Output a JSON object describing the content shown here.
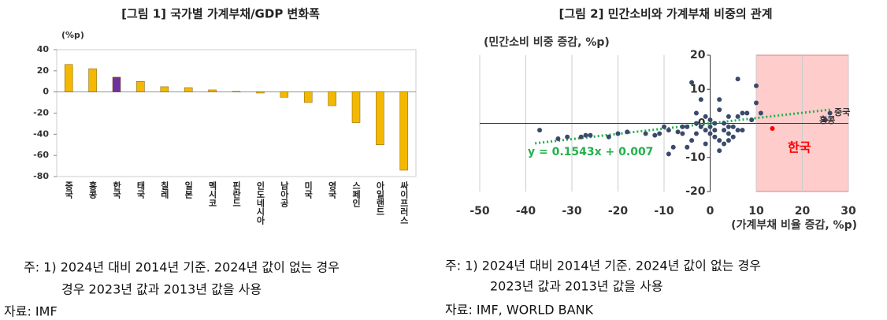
{
  "chart_data": [
    {
      "type": "bar",
      "title": "[그림 1] 국가별 가계부채/GDP 변화폭",
      "unit": "(%p)",
      "categories": [
        "중국",
        "홍콩",
        "한국",
        "태국",
        "칠레",
        "일본",
        "멕시코",
        "핀란드",
        "인도네시아",
        "남아공",
        "미국",
        "영국",
        "스페인",
        "아일랜드",
        "싸이프러스"
      ],
      "values": [
        26,
        22,
        14,
        10,
        5,
        4,
        2,
        0.5,
        -1,
        -5,
        -10,
        -13,
        -29,
        -50,
        -74
      ],
      "colors": [
        "#f5b800",
        "#f5b800",
        "#7030a0",
        "#f5b800",
        "#f5b800",
        "#f5b800",
        "#f5b800",
        "#f5b800",
        "#f5b800",
        "#f5b800",
        "#f5b800",
        "#f5b800",
        "#f5b800",
        "#f5b800",
        "#f5b800"
      ],
      "ylim": [
        -80,
        40
      ],
      "yticks": [
        -80,
        -60,
        -40,
        -20,
        0,
        20,
        40
      ],
      "note_lines": [
        "주: 1) 2024년 대비 2014년 기준. 2024년 값이 없는 경우",
        "경우 2023년 값과 2013년 값을 사용"
      ],
      "source": "자료: IMF"
    },
    {
      "type": "scatter",
      "title": "[그림 2] 민간소비와 가계부채 비중의 관계",
      "y_label": "(민간소비 비중 증감, %p)",
      "x_label": "(가계부채 비율 증감, %p)",
      "xlim": [
        -50,
        30
      ],
      "xticks": [
        -50,
        -40,
        -30,
        -20,
        -10,
        0,
        10,
        20,
        30
      ],
      "ylim": [
        -20,
        20
      ],
      "yticks": [
        -20,
        -10,
        0,
        10,
        20
      ],
      "highlight_xrange": [
        10,
        30
      ],
      "highlight_color": "#ffcccc",
      "series": [
        {
          "color": "#3b4a6b",
          "x": [
            -37,
            -33,
            -31,
            -28,
            -27,
            -26,
            -22,
            -20,
            -18,
            -14,
            -12,
            -11,
            -10,
            -9,
            -9,
            -8,
            -7,
            -6,
            -5,
            -4,
            -4,
            -3,
            -3,
            -2,
            -2,
            -1,
            -1,
            -1,
            0,
            0,
            0,
            1,
            1,
            1,
            2,
            2,
            2,
            2,
            3,
            3,
            4,
            4,
            4,
            5,
            5,
            6,
            6,
            6,
            7,
            7,
            8,
            9,
            10,
            10,
            11,
            -3,
            -5,
            -6,
            3,
            4,
            25,
            26
          ],
          "values": [
            -2,
            -4.5,
            -4,
            -4,
            -3.5,
            -3.5,
            -4,
            -3,
            -2.5,
            -3,
            -3.5,
            -3,
            -1,
            -2,
            -9,
            -7,
            -2.5,
            -1,
            -7,
            12,
            -5,
            -3,
            0,
            -1,
            7,
            -2,
            2,
            -6,
            -3,
            1,
            -1,
            -2,
            -4,
            0,
            -8,
            4,
            7,
            -5,
            -2,
            0,
            -3,
            -5,
            2,
            -1,
            -4,
            13,
            2,
            -2,
            -2,
            3,
            3,
            1,
            6,
            11,
            3,
            3,
            -1,
            -3,
            -6,
            -1,
            1,
            3
          ]
        },
        {
          "color": "#ff0000",
          "x": [
            13.5
          ],
          "values": [
            -1.5
          ]
        }
      ],
      "trendline": {
        "color": "#22b14c",
        "x": [
          -38,
          26
        ],
        "values": [
          -5.86,
          4.02
        ],
        "label": "y = 0.1543x + 0.007"
      },
      "annotations": [
        "중국",
        "홍콩",
        "한국"
      ],
      "note_lines": [
        "주: 1) 2024년 대비 2014년 기준. 2024년 값이 없는 경우",
        "2023년 값과 2013년 값을 사용"
      ],
      "source": "자료: IMF, WORLD BANK"
    }
  ]
}
